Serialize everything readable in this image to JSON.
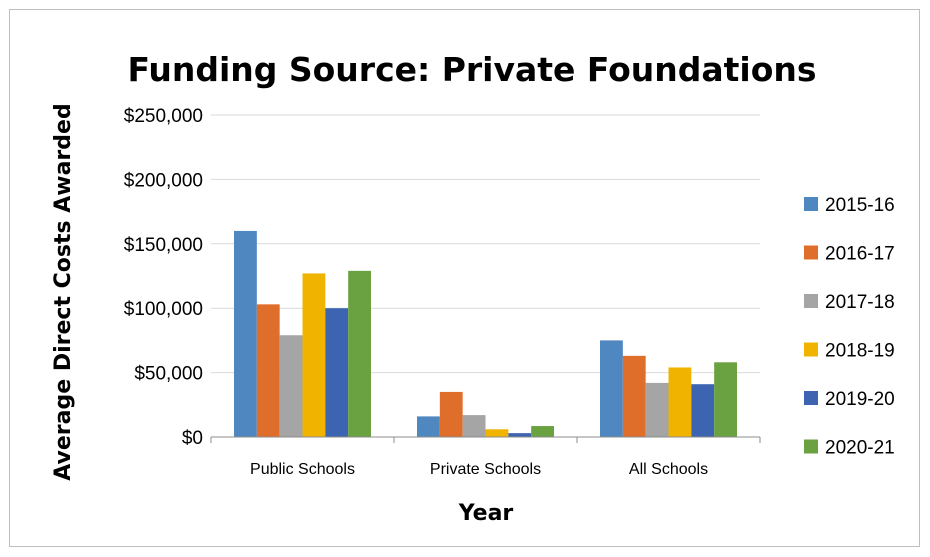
{
  "chart_data": {
    "type": "bar",
    "title": "Funding Source: Private Foundations",
    "xlabel": "Year",
    "ylabel": "Average Direct Costs Awarded",
    "categories": [
      "Public Schools",
      "Private Schools",
      "All Schools"
    ],
    "ylim": [
      0,
      250000
    ],
    "yticks": [
      0,
      50000,
      100000,
      150000,
      200000,
      250000
    ],
    "ytick_labels": [
      "$0",
      "$50,000",
      "$100,000",
      "$150,000",
      "$200,000",
      "$250,000"
    ],
    "grid": true,
    "legend_position": "right",
    "series": [
      {
        "name": "2015-16",
        "color": "#4f87c0",
        "values": [
          160000,
          16000,
          75000
        ]
      },
      {
        "name": "2016-17",
        "color": "#e06e2b",
        "values": [
          103000,
          35000,
          63000
        ]
      },
      {
        "name": "2017-18",
        "color": "#a5a5a5",
        "values": [
          79000,
          17000,
          42000
        ]
      },
      {
        "name": "2018-19",
        "color": "#f0b400",
        "values": [
          127000,
          6000,
          54000
        ]
      },
      {
        "name": "2019-20",
        "color": "#3d64b1",
        "values": [
          100000,
          3000,
          41000
        ]
      },
      {
        "name": "2020-21",
        "color": "#6aa241",
        "values": [
          129000,
          8500,
          58000
        ]
      }
    ]
  }
}
